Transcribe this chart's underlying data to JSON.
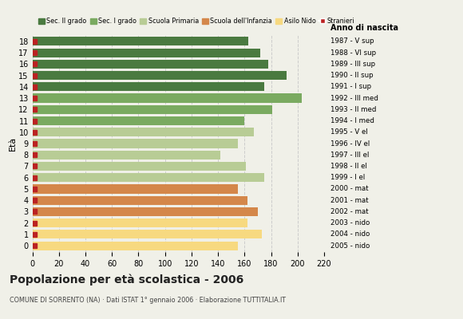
{
  "ages": [
    18,
    17,
    16,
    15,
    14,
    13,
    12,
    11,
    10,
    9,
    8,
    7,
    6,
    5,
    4,
    3,
    2,
    1,
    0
  ],
  "values": [
    163,
    172,
    178,
    192,
    175,
    203,
    181,
    160,
    167,
    155,
    142,
    161,
    175,
    155,
    162,
    170,
    162,
    173,
    155
  ],
  "right_labels": [
    "1987 - V sup",
    "1988 - VI sup",
    "1989 - III sup",
    "1990 - II sup",
    "1991 - I sup",
    "1992 - III med",
    "1993 - II med",
    "1994 - I med",
    "1995 - V el",
    "1996 - IV el",
    "1997 - III el",
    "1998 - II el",
    "1999 - I el",
    "2000 - mat",
    "2001 - mat",
    "2002 - mat",
    "2003 - nido",
    "2004 - nido",
    "2005 - nido"
  ],
  "bar_colors": [
    "#4a7a40",
    "#4a7a40",
    "#4a7a40",
    "#4a7a40",
    "#4a7a40",
    "#7aaa60",
    "#7aaa60",
    "#7aaa60",
    "#b8cc95",
    "#b8cc95",
    "#b8cc95",
    "#b8cc95",
    "#b8cc95",
    "#d4874a",
    "#d4874a",
    "#d4874a",
    "#f7d980",
    "#f7d980",
    "#f7d980"
  ],
  "stranieri_color": "#bb2222",
  "title": "Popolazione per età scolastica - 2006",
  "subtitle": "COMUNE DI SORRENTO (NA) · Dati ISTAT 1° gennaio 2006 · Elaborazione TUTTITALIA.IT",
  "ylabel": "Età",
  "anno_label": "Anno di nascita",
  "xlim": [
    0,
    220
  ],
  "xticks": [
    0,
    20,
    40,
    60,
    80,
    100,
    120,
    140,
    160,
    180,
    200,
    220
  ],
  "grid_color": "#cccccc",
  "bg_color": "#f0f0e8",
  "legend_items": [
    {
      "label": "Sec. II grado",
      "color": "#4a7a40"
    },
    {
      "label": "Sec. I grado",
      "color": "#7aaa60"
    },
    {
      "label": "Scuola Primaria",
      "color": "#b8cc95"
    },
    {
      "label": "Scuola dell'Infanzia",
      "color": "#d4874a"
    },
    {
      "label": "Asilo Nido",
      "color": "#f7d980"
    },
    {
      "label": "Stranieri",
      "color": "#bb2222"
    }
  ]
}
